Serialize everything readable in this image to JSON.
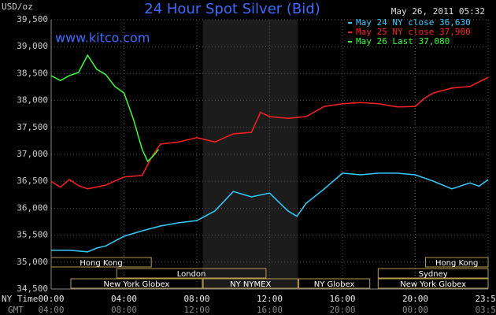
{
  "chart_data": {
    "type": "line",
    "title": "24 Hour Spot Silver (Bid)",
    "watermark": "www.kitco.com",
    "y_label": "USD/oz",
    "timestamp": "May 26, 2011 05:32",
    "x_label": "NY Time",
    "x2_label": "GMT",
    "xlim": [
      0,
      24
    ],
    "xticks": [
      {
        "value": 0,
        "label": "00:00"
      },
      {
        "value": 4,
        "label": "04:00"
      },
      {
        "value": 8,
        "label": "08:00"
      },
      {
        "value": 12,
        "label": "12:00"
      },
      {
        "value": 16,
        "label": "16:00"
      },
      {
        "value": 20,
        "label": "20:00"
      },
      {
        "value": 24,
        "label": "23:59"
      }
    ],
    "x2ticks": [
      {
        "value": 0,
        "label": "04:00"
      },
      {
        "value": 4,
        "label": "08:00"
      },
      {
        "value": 8,
        "label": "12:00"
      },
      {
        "value": 12,
        "label": "16:00"
      },
      {
        "value": 16,
        "label": "20:00"
      },
      {
        "value": 20,
        "label": "00:00"
      },
      {
        "value": 24,
        "label": "03:59"
      }
    ],
    "ylim": [
      34500,
      39500
    ],
    "yticks": [
      {
        "value": 34500,
        "label": "34,500"
      },
      {
        "value": 35000,
        "label": "35,000"
      },
      {
        "value": 35500,
        "label": "35,500"
      },
      {
        "value": 36000,
        "label": "36,000"
      },
      {
        "value": 36500,
        "label": "36,500"
      },
      {
        "value": 37000,
        "label": "37,000"
      },
      {
        "value": 37500,
        "label": "37,500"
      },
      {
        "value": 38000,
        "label": "38,000"
      },
      {
        "value": 38500,
        "label": "38,500"
      },
      {
        "value": 39000,
        "label": "39,000"
      },
      {
        "value": 39500,
        "label": "39,500"
      }
    ],
    "grid": true,
    "highlight": {
      "start": 8.33,
      "end": 13.55
    },
    "sessions": [
      [
        {
          "label": "Hong Kong",
          "start": 0,
          "end": 5.5
        },
        {
          "label": "Hong Kong",
          "start": 20.56,
          "end": 24
        }
      ],
      [
        {
          "label": "London",
          "start": 3.6,
          "end": 11.8
        },
        {
          "label": "Sydney",
          "start": 17.96,
          "end": 24
        }
      ],
      [
        {
          "label": "New York Globex",
          "start": 1.08,
          "end": 8.3
        },
        {
          "label": "NY NYMEX",
          "start": 8.35,
          "end": 13.55
        },
        {
          "label": "NY Globex",
          "start": 13.6,
          "end": 17.5
        },
        {
          "label": "New York Globex",
          "start": 17.96,
          "end": 24
        }
      ]
    ],
    "series": [
      {
        "name": "May 24 NY close 36,630",
        "color": "#33ccff",
        "x": [
          0,
          1,
          2,
          2.5,
          3,
          4,
          5,
          6,
          7,
          8,
          9,
          10,
          11,
          12,
          13,
          13.5,
          14,
          15,
          16,
          17,
          18,
          19,
          20,
          21,
          22,
          23,
          23.5,
          24
        ],
        "values": [
          35220,
          35220,
          35190,
          35260,
          35300,
          35480,
          35580,
          35670,
          35730,
          35770,
          35950,
          36310,
          36210,
          36280,
          35950,
          35850,
          36090,
          36360,
          36650,
          36620,
          36650,
          36650,
          36620,
          36500,
          36360,
          36470,
          36410,
          36530
        ]
      },
      {
        "name": "May 25 NY close 37,900",
        "color": "#ff2020",
        "x": [
          0,
          0.5,
          1,
          1.5,
          2,
          3,
          4,
          5,
          5.5,
          6,
          7,
          8,
          9,
          10,
          11,
          11.5,
          12,
          13,
          14,
          15,
          16,
          17,
          18,
          19,
          20,
          20.5,
          21,
          22,
          23,
          24
        ],
        "values": [
          36500,
          36390,
          36530,
          36420,
          36360,
          36430,
          36580,
          36610,
          36940,
          37190,
          37230,
          37310,
          37230,
          37380,
          37410,
          37780,
          37700,
          37670,
          37700,
          37890,
          37940,
          37960,
          37940,
          37880,
          37890,
          38040,
          38140,
          38230,
          38260,
          38430
        ]
      },
      {
        "name": "May 26 Last 37,080",
        "color": "#33ff33",
        "x": [
          0,
          0.5,
          1,
          1.5,
          2,
          2.5,
          3,
          3.5,
          4,
          4.5,
          5,
          5.3,
          5.6,
          5.9
        ],
        "values": [
          38460,
          38370,
          38460,
          38520,
          38840,
          38580,
          38480,
          38260,
          38140,
          37670,
          37090,
          36870,
          36970,
          37090
        ]
      }
    ]
  }
}
